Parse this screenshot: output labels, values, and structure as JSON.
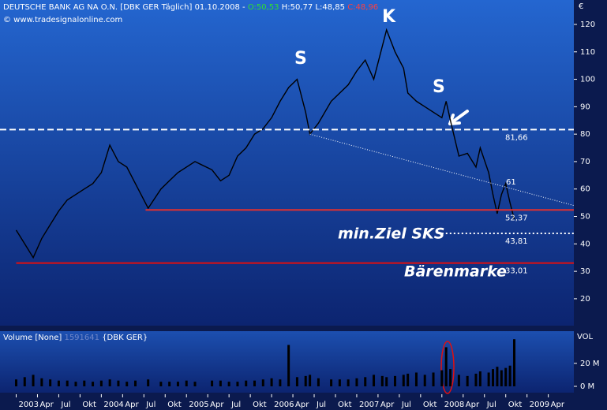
{
  "header": {
    "symbol": "DEUTSCHE BANK AG NA O.N. [DBK GER  Täglich] 01.10.2008 -",
    "open": "O:50,53",
    "high": "H:50,77",
    "low": "L:48,85",
    "close": "C:48,96",
    "copyright": "© www.tradesignalonline.com",
    "currency": "€",
    "volume_title": "Volume [None]",
    "volume_value": "1591641",
    "volume_symbol": "{DBK GER}",
    "volume_axis": "VOL"
  },
  "chart_data": [
    {
      "type": "line",
      "color": "#000000",
      "x": [
        2003.0,
        2003.1,
        2003.2,
        2003.3,
        2003.4,
        2003.5,
        2003.6,
        2003.7,
        2003.8,
        2003.9,
        2004.0,
        2004.1,
        2004.2,
        2004.3,
        2004.4,
        2004.55,
        2004.7,
        2004.8,
        2004.9,
        2005.0,
        2005.1,
        2005.3,
        2005.4,
        2005.5,
        2005.6,
        2005.7,
        2005.8,
        2005.9,
        2006.0,
        2006.1,
        2006.2,
        2006.3,
        2006.4,
        2006.45,
        2006.55,
        2006.7,
        2006.8,
        2006.9,
        2007.0,
        2007.1,
        2007.2,
        2007.3,
        2007.35,
        2007.45,
        2007.55,
        2007.6,
        2007.7,
        2007.8,
        2007.9,
        2008.0,
        2008.05,
        2008.1,
        2008.2,
        2008.3,
        2008.4,
        2008.45,
        2008.55,
        2008.6,
        2008.65,
        2008.7,
        2008.75,
        2008.8,
        2008.85
      ],
      "values": [
        45,
        40,
        35,
        42,
        47,
        52,
        56,
        58,
        60,
        62,
        66,
        76,
        70,
        68,
        62,
        53,
        60,
        63,
        66,
        68,
        70,
        67,
        63,
        65,
        72,
        75,
        80,
        82,
        86,
        92,
        97,
        100,
        88,
        80,
        84,
        92,
        95,
        98,
        103,
        107,
        100,
        112,
        118,
        110,
        104,
        95,
        92,
        90,
        88,
        86,
        92,
        85,
        72,
        73,
        68,
        75,
        66,
        58,
        51,
        58,
        62,
        55,
        49
      ],
      "xlim": [
        2002.81,
        2009.55
      ],
      "ylim": [
        10.2,
        128.9
      ],
      "yticks": [
        20,
        30,
        40,
        50,
        60,
        70,
        80,
        90,
        100,
        110,
        120
      ],
      "xticks": [
        {
          "value": 2003.0,
          "label": "2003"
        },
        {
          "value": 2003.25,
          "label": "Apr"
        },
        {
          "value": 2003.5,
          "label": "Jul"
        },
        {
          "value": 2003.75,
          "label": "Okt"
        },
        {
          "value": 2004.0,
          "label": "2004"
        },
        {
          "value": 2004.25,
          "label": "Apr"
        },
        {
          "value": 2004.5,
          "label": "Jul"
        },
        {
          "value": 2004.75,
          "label": "Okt"
        },
        {
          "value": 2005.0,
          "label": "2005"
        },
        {
          "value": 2005.25,
          "label": "Apr"
        },
        {
          "value": 2005.5,
          "label": "Jul"
        },
        {
          "value": 2005.75,
          "label": "Okt"
        },
        {
          "value": 2006.0,
          "label": "2006"
        },
        {
          "value": 2006.25,
          "label": "Apr"
        },
        {
          "value": 2006.5,
          "label": "Jul"
        },
        {
          "value": 2006.75,
          "label": "Okt"
        },
        {
          "value": 2007.0,
          "label": "2007"
        },
        {
          "value": 2007.25,
          "label": "Apr"
        },
        {
          "value": 2007.5,
          "label": "Jul"
        },
        {
          "value": 2007.75,
          "label": "Okt"
        },
        {
          "value": 2008.0,
          "label": "2008"
        },
        {
          "value": 2008.25,
          "label": "Apr"
        },
        {
          "value": 2008.5,
          "label": "Jul"
        },
        {
          "value": 2008.75,
          "label": "Okt"
        },
        {
          "value": 2009.0,
          "label": "2009"
        },
        {
          "value": 2009.25,
          "label": "Apr"
        }
      ],
      "levels": [
        {
          "value": 81.66,
          "label": "81,66",
          "color": "#ffffff",
          "style": "dashed",
          "x0": 2002.81
        },
        {
          "value": 52.37,
          "label": "52,37",
          "color": "#e03030",
          "style": "solid",
          "x0": 2004.52
        },
        {
          "value": 43.81,
          "label": "43,81",
          "color": "#ffffff",
          "style": "dotted",
          "x0": 2008.0
        },
        {
          "value": 33.01,
          "label": "33,01",
          "color": "#e01010",
          "style": "solid",
          "x0": 2003.0
        }
      ],
      "trendline": {
        "x": [
          2006.45,
          2009.55
        ],
        "values": [
          80,
          54
        ],
        "label": 61,
        "color": "#ffffff"
      },
      "annotations": [
        "S",
        "K",
        "S",
        "min.Ziel SKS",
        "Bärenmarke"
      ]
    },
    {
      "type": "bar",
      "color": "#000000",
      "x": [
        2003.0,
        2003.1,
        2003.2,
        2003.3,
        2003.4,
        2003.5,
        2003.6,
        2003.7,
        2003.8,
        2003.9,
        2004.0,
        2004.1,
        2004.2,
        2004.3,
        2004.4,
        2004.55,
        2004.7,
        2004.8,
        2004.9,
        2005.0,
        2005.1,
        2005.3,
        2005.4,
        2005.5,
        2005.6,
        2005.7,
        2005.8,
        2005.9,
        2006.0,
        2006.1,
        2006.2,
        2006.3,
        2006.4,
        2006.45,
        2006.55,
        2006.7,
        2006.8,
        2006.9,
        2007.0,
        2007.1,
        2007.2,
        2007.3,
        2007.35,
        2007.45,
        2007.55,
        2007.6,
        2007.7,
        2007.8,
        2007.9,
        2008.0,
        2008.05,
        2008.1,
        2008.2,
        2008.3,
        2008.4,
        2008.45,
        2008.55,
        2008.6,
        2008.65,
        2008.7,
        2008.75,
        2008.8,
        2008.85
      ],
      "values": [
        6,
        8,
        10,
        7,
        6,
        5,
        5,
        4,
        5,
        4,
        5,
        6,
        5,
        4,
        5,
        6,
        4,
        4,
        4,
        5,
        4,
        5,
        5,
        4,
        4,
        5,
        5,
        6,
        7,
        6,
        36,
        8,
        9,
        10,
        7,
        6,
        6,
        6,
        7,
        8,
        10,
        9,
        8,
        9,
        10,
        11,
        12,
        10,
        12,
        14,
        34,
        15,
        10,
        9,
        11,
        13,
        12,
        15,
        17,
        14,
        16,
        18,
        41
      ],
      "xlim": [
        2002.81,
        2009.55
      ],
      "ylim": [
        -5.5,
        48
      ],
      "yticks": [
        {
          "value": 0,
          "label": "0 M"
        },
        {
          "value": 20,
          "label": "20 M"
        }
      ]
    }
  ]
}
